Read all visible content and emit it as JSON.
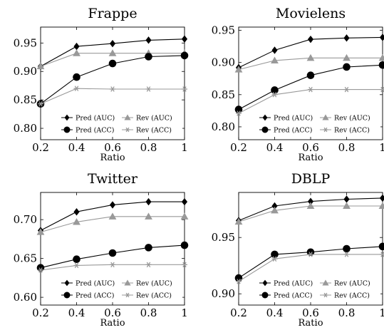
{
  "chart_data": [
    {
      "type": "line",
      "title": "Frappe",
      "xlabel": "Ratio",
      "ylabel": "",
      "x": [
        0.2,
        0.4,
        0.6,
        0.8,
        1
      ],
      "x_ticks": [
        "0.2",
        "0.4",
        "0.6",
        "0.8",
        "1"
      ],
      "xlim": [
        0.2,
        1
      ],
      "ylim": [
        0.78,
        0.978
      ],
      "y_ticks": [
        0.8,
        0.85,
        0.9,
        0.95
      ],
      "y_tick_labels": [
        "0.80",
        "0.85",
        "0.90",
        "0.95"
      ],
      "legend_position": "lower-right",
      "series": [
        {
          "name": "Pred (AUC)",
          "marker": "diamond",
          "color": "#000000",
          "values": [
            0.909,
            0.944,
            0.949,
            0.955,
            0.957
          ]
        },
        {
          "name": "Rev (AUC)",
          "marker": "triangle",
          "color": "#999999",
          "values": [
            0.909,
            0.932,
            0.932,
            0.932,
            0.932
          ]
        },
        {
          "name": "Pred (ACC)",
          "marker": "circle",
          "color": "#000000",
          "values": [
            0.843,
            0.89,
            0.914,
            0.926,
            0.928
          ]
        },
        {
          "name": "Rev (ACC)",
          "marker": "star",
          "color": "#999999",
          "values": [
            0.843,
            0.87,
            0.869,
            0.869,
            0.869
          ]
        }
      ]
    },
    {
      "type": "line",
      "title": "Movielens",
      "xlabel": "Ratio",
      "ylabel": "",
      "x": [
        0.2,
        0.4,
        0.6,
        0.8,
        1
      ],
      "x_ticks": [
        "0.2",
        "0.4",
        "0.6",
        "0.8",
        "1"
      ],
      "xlim": [
        0.2,
        1
      ],
      "ylim": [
        0.78,
        0.955
      ],
      "y_ticks": [
        0.8,
        0.85,
        0.9,
        0.95
      ],
      "y_tick_labels": [
        "0.80",
        "0.85",
        "0.90",
        "0.95"
      ],
      "legend_position": "lower-right",
      "series": [
        {
          "name": "Pred (AUC)",
          "marker": "diamond",
          "color": "#000000",
          "values": [
            0.892,
            0.919,
            0.936,
            0.938,
            0.939
          ]
        },
        {
          "name": "Rev (AUC)",
          "marker": "triangle",
          "color": "#999999",
          "values": [
            0.889,
            0.903,
            0.907,
            0.907,
            0.907
          ]
        },
        {
          "name": "Pred (ACC)",
          "marker": "circle",
          "color": "#000000",
          "values": [
            0.827,
            0.857,
            0.88,
            0.893,
            0.896
          ]
        },
        {
          "name": "Rev (ACC)",
          "marker": "star",
          "color": "#999999",
          "values": [
            0.821,
            0.85,
            0.858,
            0.858,
            0.858
          ]
        }
      ]
    },
    {
      "type": "line",
      "title": "Twitter",
      "xlabel": "Ratio",
      "ylabel": "",
      "x": [
        0.2,
        0.4,
        0.6,
        0.8,
        1
      ],
      "x_ticks": [
        "0.2",
        "0.4",
        "0.6",
        "0.8",
        "1"
      ],
      "xlim": [
        0.2,
        1
      ],
      "ylim": [
        0.59,
        0.735
      ],
      "y_ticks": [
        0.6,
        0.65,
        0.7
      ],
      "y_tick_labels": [
        "0.60",
        "0.65",
        "0.70"
      ],
      "legend_position": "lower-right",
      "series": [
        {
          "name": "Pred (AUC)",
          "marker": "diamond",
          "color": "#000000",
          "values": [
            0.686,
            0.71,
            0.719,
            0.723,
            0.723
          ]
        },
        {
          "name": "Rev (AUC)",
          "marker": "triangle",
          "color": "#999999",
          "values": [
            0.684,
            0.697,
            0.704,
            0.704,
            0.704
          ]
        },
        {
          "name": "Pred (ACC)",
          "marker": "circle",
          "color": "#000000",
          "values": [
            0.638,
            0.649,
            0.657,
            0.664,
            0.667
          ]
        },
        {
          "name": "Rev (ACC)",
          "marker": "star",
          "color": "#999999",
          "values": [
            0.635,
            0.641,
            0.642,
            0.642,
            0.642
          ]
        }
      ]
    },
    {
      "type": "line",
      "title": "DBLP",
      "xlabel": "Ratio",
      "ylabel": "",
      "x": [
        0.2,
        0.4,
        0.6,
        0.8,
        1
      ],
      "x_ticks": [
        "0.2",
        "0.4",
        "0.6",
        "0.8",
        "1"
      ],
      "xlim": [
        0.2,
        1
      ],
      "ylim": [
        0.89,
        0.99
      ],
      "y_ticks": [
        0.9,
        0.95
      ],
      "y_tick_labels": [
        "0.90",
        "0.95"
      ],
      "legend_position": "lower-right",
      "series": [
        {
          "name": "Pred (AUC)",
          "marker": "diamond",
          "color": "#000000",
          "values": [
            0.965,
            0.978,
            0.982,
            0.984,
            0.985
          ]
        },
        {
          "name": "Rev (AUC)",
          "marker": "triangle",
          "color": "#999999",
          "values": [
            0.964,
            0.974,
            0.978,
            0.978,
            0.978
          ]
        },
        {
          "name": "Pred (ACC)",
          "marker": "circle",
          "color": "#000000",
          "values": [
            0.914,
            0.935,
            0.937,
            0.94,
            0.942
          ]
        },
        {
          "name": "Rev (ACC)",
          "marker": "star",
          "color": "#999999",
          "values": [
            0.911,
            0.931,
            0.935,
            0.935,
            0.935
          ]
        }
      ]
    }
  ]
}
